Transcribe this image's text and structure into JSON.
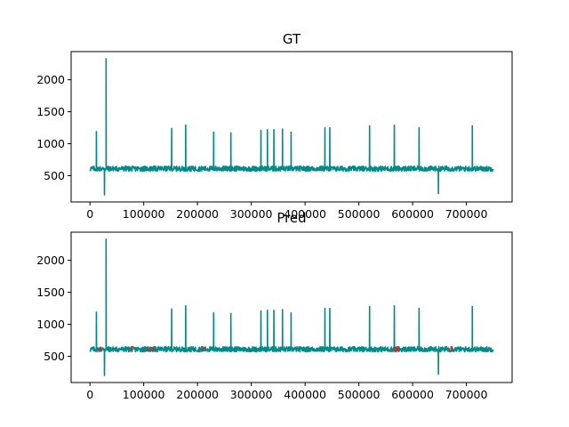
{
  "colors": {
    "series": "#008b8b",
    "anomaly": "#d62728"
  },
  "chart_data": [
    {
      "type": "line",
      "title": "GT",
      "xlim": [
        -35000,
        785000
      ],
      "ylim": [
        90,
        2440
      ],
      "xticks": [
        0,
        100000,
        200000,
        300000,
        400000,
        500000,
        600000,
        700000
      ],
      "xtick_labels": [
        "0",
        "100000",
        "200000",
        "300000",
        "400000",
        "500000",
        "600000",
        "700000"
      ],
      "yticks": [
        500,
        1000,
        1500,
        2000
      ],
      "ytick_labels": [
        "500",
        "1000",
        "1500",
        "2000"
      ],
      "series": [
        {
          "baseline": [
            570,
            650
          ],
          "x_range": [
            0,
            750000
          ],
          "spikes": [
            {
              "x": 12000,
              "y": 1190
            },
            {
              "x": 30000,
              "y": 2330
            },
            {
              "x": 152000,
              "y": 1240
            },
            {
              "x": 178000,
              "y": 1290
            },
            {
              "x": 230000,
              "y": 1180
            },
            {
              "x": 262000,
              "y": 1170
            },
            {
              "x": 318000,
              "y": 1210
            },
            {
              "x": 330000,
              "y": 1220
            },
            {
              "x": 342000,
              "y": 1220
            },
            {
              "x": 358000,
              "y": 1230
            },
            {
              "x": 374000,
              "y": 1180
            },
            {
              "x": 437000,
              "y": 1250
            },
            {
              "x": 446000,
              "y": 1250
            },
            {
              "x": 520000,
              "y": 1280
            },
            {
              "x": 566000,
              "y": 1290
            },
            {
              "x": 612000,
              "y": 1250
            },
            {
              "x": 711000,
              "y": 1280
            }
          ],
          "dips": [
            {
              "x": 27000,
              "y": 200
            },
            {
              "x": 648000,
              "y": 220
            }
          ]
        }
      ],
      "anomalies": []
    },
    {
      "type": "line",
      "title": "Pred",
      "xlim": [
        -35000,
        785000
      ],
      "ylim": [
        90,
        2440
      ],
      "xticks": [
        0,
        100000,
        200000,
        300000,
        400000,
        500000,
        600000,
        700000
      ],
      "xtick_labels": [
        "0",
        "100000",
        "200000",
        "300000",
        "400000",
        "500000",
        "600000",
        "700000"
      ],
      "yticks": [
        500,
        1000,
        1500,
        2000
      ],
      "ytick_labels": [
        "500",
        "1000",
        "1500",
        "2000"
      ],
      "series": [
        {
          "baseline": [
            570,
            650
          ],
          "x_range": [
            0,
            750000
          ],
          "spikes": [
            {
              "x": 12000,
              "y": 1190
            },
            {
              "x": 30000,
              "y": 2330
            },
            {
              "x": 152000,
              "y": 1240
            },
            {
              "x": 178000,
              "y": 1290
            },
            {
              "x": 230000,
              "y": 1180
            },
            {
              "x": 262000,
              "y": 1170
            },
            {
              "x": 318000,
              "y": 1210
            },
            {
              "x": 330000,
              "y": 1220
            },
            {
              "x": 342000,
              "y": 1220
            },
            {
              "x": 358000,
              "y": 1230
            },
            {
              "x": 374000,
              "y": 1180
            },
            {
              "x": 437000,
              "y": 1250
            },
            {
              "x": 446000,
              "y": 1250
            },
            {
              "x": 520000,
              "y": 1280
            },
            {
              "x": 566000,
              "y": 1290
            },
            {
              "x": 612000,
              "y": 1250
            },
            {
              "x": 711000,
              "y": 1280
            }
          ],
          "dips": [
            {
              "x": 27000,
              "y": 200
            },
            {
              "x": 648000,
              "y": 220
            }
          ]
        }
      ],
      "anomalies": [
        {
          "x": 20000,
          "y": 610
        },
        {
          "x": 78000,
          "y": 620
        },
        {
          "x": 108000,
          "y": 615
        },
        {
          "x": 118000,
          "y": 610
        },
        {
          "x": 210000,
          "y": 615
        },
        {
          "x": 568000,
          "y": 605
        },
        {
          "x": 572000,
          "y": 615
        },
        {
          "x": 672000,
          "y": 620
        }
      ]
    }
  ]
}
